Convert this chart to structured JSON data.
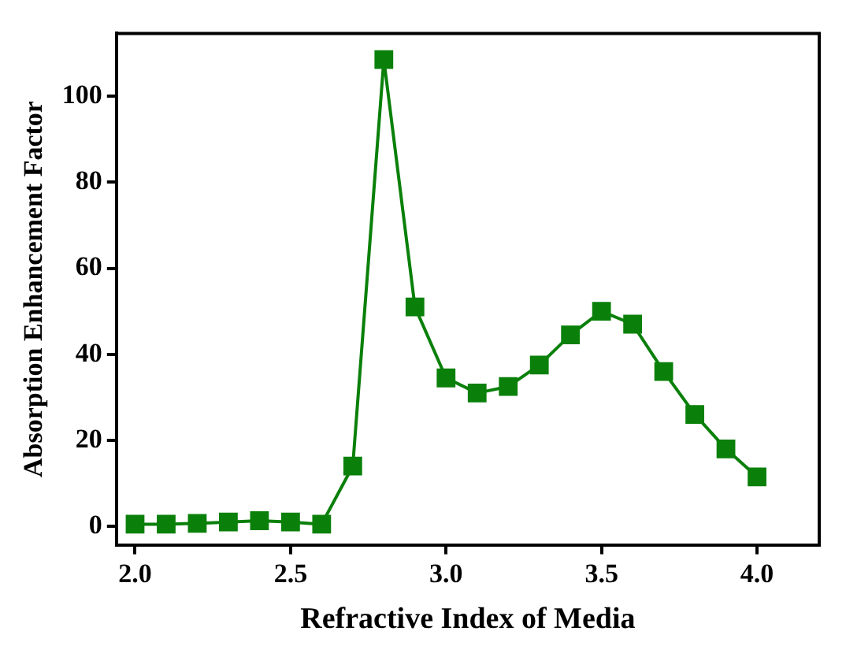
{
  "chart_data": {
    "type": "line",
    "xlabel": "Refractive Index of Media",
    "ylabel": "Absorption Enhancement Factor",
    "x": [
      2.0,
      2.1,
      2.2,
      2.3,
      2.4,
      2.5,
      2.6,
      2.7,
      2.8,
      2.9,
      3.0,
      3.1,
      3.2,
      3.3,
      3.4,
      3.5,
      3.6,
      3.7,
      3.8,
      3.9,
      4.0
    ],
    "series": [
      {
        "color": "#0a800a",
        "values": [
          0.5,
          0.5,
          0.7,
          1,
          1.3,
          1,
          0.5,
          14,
          108.5,
          51,
          34.5,
          31,
          32.5,
          37.5,
          44.5,
          50,
          47,
          36,
          26,
          18,
          11.5
        ]
      }
    ],
    "xlim": [
      1.94,
      4.2
    ],
    "xticks": [
      {
        "value": 2,
        "label": "2.0"
      },
      2.5,
      {
        "value": 3,
        "label": "3.0"
      },
      3.5,
      {
        "value": 4,
        "label": "4.0"
      }
    ],
    "ylim": [
      -4.3,
      114.6
    ],
    "yticks": [
      0,
      20,
      40,
      60,
      80,
      100
    ],
    "marker": "square",
    "line_style": "solid",
    "grid": false,
    "legend": false
  }
}
